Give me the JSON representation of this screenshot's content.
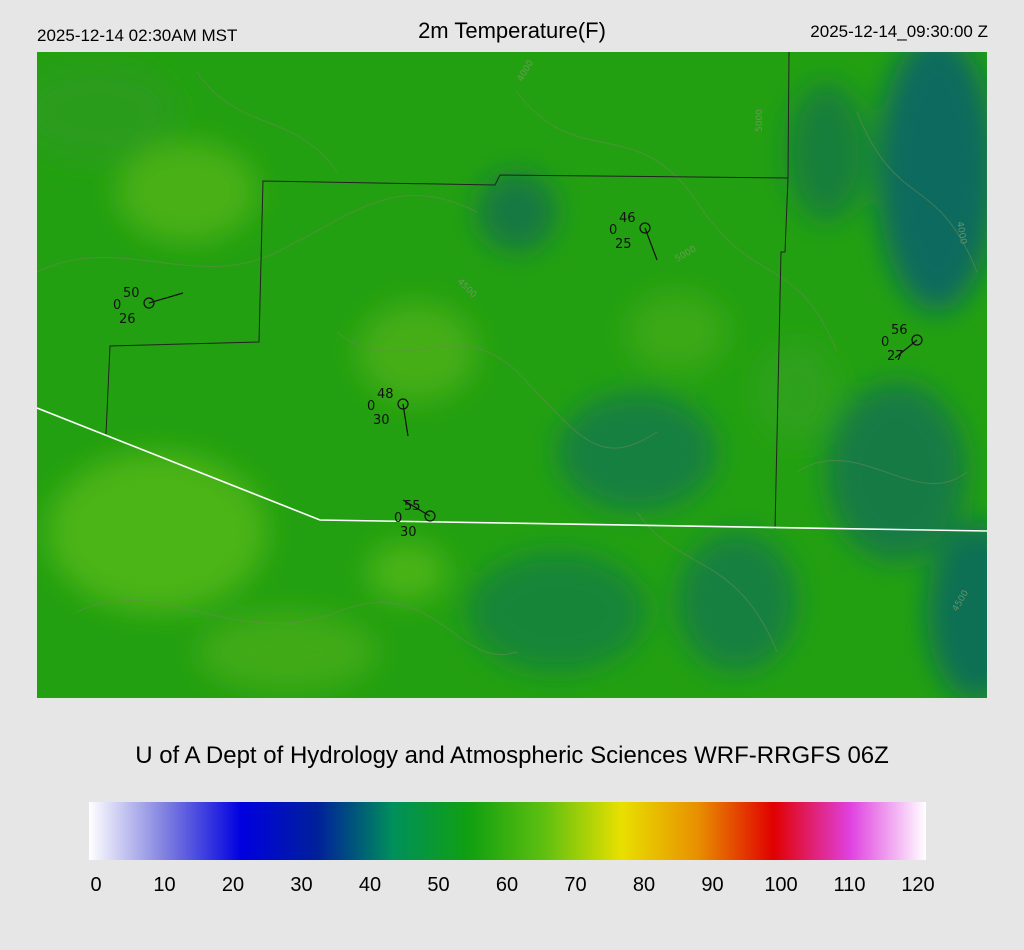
{
  "header": {
    "local_time": "2025-12-14 02:30AM MST",
    "title": "2m Temperature(F)",
    "utc_time": "2025-12-14_09:30:00 Z"
  },
  "credit": "U of A Dept of Hydrology and Atmospheric Sciences WRF-RRGFS 06Z",
  "colorbar": {
    "ticks": [
      "0",
      "10",
      "20",
      "30",
      "40",
      "50",
      "60",
      "70",
      "80",
      "90",
      "100",
      "110",
      "120"
    ],
    "colors": [
      "#ffffff",
      "#8080e0",
      "#0000e0",
      "#00209a",
      "#00905a",
      "#10a010",
      "#60c010",
      "#e8e000",
      "#e89000",
      "#e00000",
      "#e040e0",
      "#ffffff"
    ]
  },
  "map": {
    "contour_labels": [
      "4000",
      "4500",
      "5000"
    ],
    "stations": [
      {
        "temp": "50",
        "gust": "0",
        "dew": "26"
      },
      {
        "temp": "46",
        "gust": "0",
        "dew": "25"
      },
      {
        "temp": "48",
        "gust": "0",
        "dew": "30"
      },
      {
        "temp": "55",
        "gust": "0",
        "dew": "30"
      },
      {
        "temp": "56",
        "gust": "0",
        "dew": "27"
      }
    ]
  }
}
